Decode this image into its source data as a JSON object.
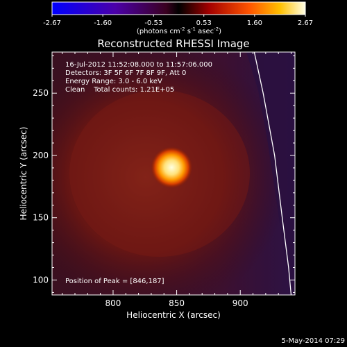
{
  "chart_data": {
    "type": "heatmap",
    "title": "Reconstructed RHESSI Image",
    "colorbar": {
      "ticks": [
        "-2.67",
        "-1.60",
        "-0.53",
        "0.53",
        "1.60",
        "2.67"
      ],
      "range": [
        -2.67,
        2.67
      ],
      "unit_parts": [
        "(photons cm",
        "-2",
        " s",
        "-1",
        " asec",
        "-2",
        ")"
      ]
    },
    "xlabel": "Heliocentric X (arcsec)",
    "ylabel": "Heliocentric Y (arcsec)",
    "xlim": [
      752,
      943
    ],
    "ylim": [
      88,
      283
    ],
    "xticks": [
      800,
      850,
      900
    ],
    "yticks": [
      100,
      150,
      200,
      250
    ],
    "info_lines": [
      "16-Jul-2012 11:52:08.000 to 11:57:06.000",
      "Detectors: 3F 5F 6F 7F 8F 9F, Att 0",
      "Energy Range: 3.0 - 6.0 keV",
      "Clean    Total counts: 1.21E+05"
    ],
    "peak_label": "Position of Peak = [846,187]",
    "peak": {
      "x": 846,
      "y": 187
    },
    "limb": [
      [
        911,
        283
      ],
      [
        918,
        250
      ],
      [
        927,
        200
      ],
      [
        933,
        150
      ],
      [
        938,
        110
      ],
      [
        940,
        88
      ]
    ],
    "colors": {
      "background": "#000000",
      "limb": "#ffffff",
      "text": "#ffffff"
    }
  },
  "footer": {
    "date": "5-May-2014 07:29"
  }
}
